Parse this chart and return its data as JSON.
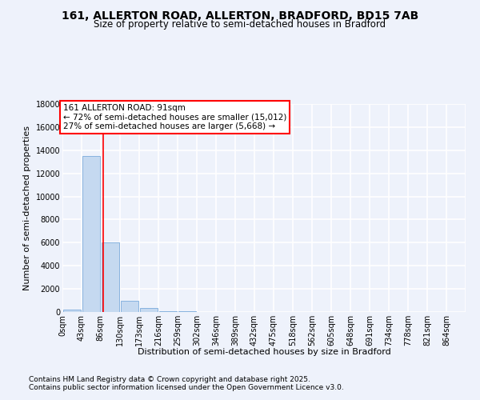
{
  "title": "161, ALLERTON ROAD, ALLERTON, BRADFORD, BD15 7AB",
  "subtitle": "Size of property relative to semi-detached houses in Bradford",
  "xlabel": "Distribution of semi-detached houses by size in Bradford",
  "ylabel": "Number of semi-detached properties",
  "bar_color": "#c5d9f0",
  "bar_edge_color": "#7aaadb",
  "bins": [
    0,
    43,
    86,
    130,
    173,
    216,
    259,
    302,
    346,
    389,
    432,
    475,
    518,
    562,
    605,
    648,
    691,
    734,
    778,
    821,
    864
  ],
  "bar_heights": [
    200,
    13500,
    6000,
    1000,
    350,
    100,
    50,
    10,
    3,
    2,
    1,
    1,
    0,
    0,
    0,
    0,
    0,
    0,
    0,
    0
  ],
  "tick_labels": [
    "0sqm",
    "43sqm",
    "86sqm",
    "130sqm",
    "173sqm",
    "216sqm",
    "259sqm",
    "302sqm",
    "346sqm",
    "389sqm",
    "432sqm",
    "475sqm",
    "518sqm",
    "562sqm",
    "605sqm",
    "648sqm",
    "691sqm",
    "734sqm",
    "778sqm",
    "821sqm",
    "864sqm"
  ],
  "red_line_x": 91,
  "annotation_title": "161 ALLERTON ROAD: 91sqm",
  "annotation_line1": "← 72% of semi-detached houses are smaller (15,012)",
  "annotation_line2": "27% of semi-detached houses are larger (5,668) →",
  "ylim": [
    0,
    18000
  ],
  "yticks": [
    0,
    2000,
    4000,
    6000,
    8000,
    10000,
    12000,
    14000,
    16000,
    18000
  ],
  "footer1": "Contains HM Land Registry data © Crown copyright and database right 2025.",
  "footer2": "Contains public sector information licensed under the Open Government Licence v3.0.",
  "bg_color": "#eef2fb",
  "grid_color": "#ffffff",
  "title_fontsize": 10,
  "subtitle_fontsize": 8.5,
  "axis_label_fontsize": 8,
  "tick_fontsize": 7,
  "annotation_fontsize": 7.5,
  "footer_fontsize": 6.5
}
